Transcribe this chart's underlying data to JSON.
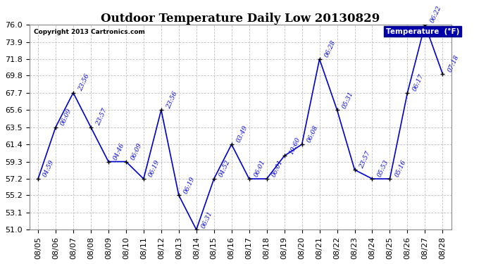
{
  "title": "Outdoor Temperature Daily Low 20130829",
  "copyright": "Copyright 2013 Cartronics.com",
  "legend_label": "Temperature  (°F)",
  "dates": [
    "08/05",
    "08/06",
    "08/07",
    "08/08",
    "08/09",
    "08/10",
    "08/11",
    "08/12",
    "08/13",
    "08/14",
    "08/15",
    "08/16",
    "08/17",
    "08/18",
    "08/19",
    "08/20",
    "08/21",
    "08/22",
    "08/23",
    "08/24",
    "08/25",
    "08/26",
    "08/27",
    "08/28"
  ],
  "temps": [
    57.2,
    63.5,
    67.7,
    63.5,
    59.3,
    59.3,
    57.2,
    65.6,
    55.2,
    51.0,
    57.2,
    61.4,
    57.2,
    57.2,
    60.0,
    61.4,
    71.8,
    65.6,
    58.3,
    57.2,
    57.2,
    67.7,
    76.0,
    70.0
  ],
  "annotations": [
    "04:59",
    "06:09",
    "23:56",
    "23:57",
    "04:46",
    "06:09",
    "06:19",
    "23:56",
    "06:19",
    "06:31",
    "04:52",
    "03:49",
    "06:01",
    "06:01",
    "10:60",
    "06:08",
    "06:28",
    "05:31",
    "23:57",
    "05:53",
    "05:16",
    "06:17",
    "06:22",
    "07:18"
  ],
  "line_color": "#0000cc",
  "marker_color": "#000000",
  "annotation_color": "#0000cc",
  "bg_color": "#ffffff",
  "grid_color": "#c0c0c0",
  "ylim_min": 51.0,
  "ylim_max": 76.0,
  "yticks": [
    51.0,
    53.1,
    55.2,
    57.2,
    59.3,
    61.4,
    63.5,
    65.6,
    67.7,
    69.8,
    71.8,
    73.9,
    76.0
  ],
  "legend_bg": "#0000aa",
  "legend_fg": "#ffffff",
  "title_fontsize": 12,
  "annotation_fontsize": 6.5,
  "tick_fontsize": 8,
  "copyright_color": "#000000"
}
